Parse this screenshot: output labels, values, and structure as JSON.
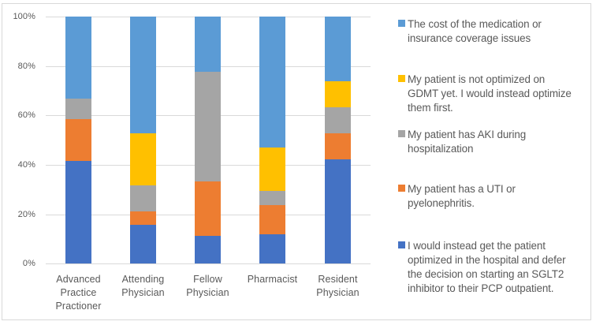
{
  "colors": {
    "series_dark_blue": "#4472C4",
    "series_orange": "#ED7D31",
    "series_gray": "#A5A5A5",
    "series_yellow": "#FFC000",
    "series_light_blue": "#5B9BD5",
    "gridline": "#D9D9D9",
    "axis_line": "#D9D9D9",
    "chart_border": "#D9D9D9",
    "text": "#595959",
    "background": "#FFFFFF"
  },
  "chart_data": {
    "type": "bar",
    "subtype": "stacked-100-percent-column",
    "title": "",
    "xlabel": "",
    "ylabel": "",
    "ylim": [
      0,
      100
    ],
    "yticks": [
      "0%",
      "20%",
      "40%",
      "60%",
      "80%",
      "100%"
    ],
    "grid": true,
    "legend_position": "right",
    "categories": [
      "Advanced Practice Practioner",
      "Attending Physician",
      "Fellow Physician",
      "Pharmacist",
      "Resident Physician"
    ],
    "category_label_lines": [
      [
        "Advanced",
        "Practice",
        "Practioner"
      ],
      [
        "Attending",
        "Physician"
      ],
      [
        "Fellow",
        "Physician"
      ],
      [
        "Pharmacist"
      ],
      [
        "Resident",
        "Physician"
      ]
    ],
    "series": [
      {
        "name": "I would instead get the patient optimized in the hospital and defer the decision on starting an SGLT2 inhibitor to their PCP outpatient.",
        "color": "#4472C4",
        "values": [
          41.67,
          15.79,
          11.11,
          11.76,
          42.11
        ]
      },
      {
        "name": "My patient has a UTI or pyelonephritis.",
        "color": "#ED7D31",
        "values": [
          16.67,
          5.26,
          22.22,
          11.76,
          10.53
        ]
      },
      {
        "name": "My patient has AKI during hospitalization",
        "color": "#A5A5A5",
        "values": [
          8.33,
          10.53,
          44.44,
          5.88,
          10.53
        ]
      },
      {
        "name": "My patient is not optimized on GDMT yet. I would instead optimize them first.",
        "color": "#FFC000",
        "values": [
          0,
          21.05,
          0,
          17.65,
          10.53
        ]
      },
      {
        "name": "The cost of the medication or insurance coverage issues",
        "color": "#5B9BD5",
        "values": [
          33.33,
          47.37,
          22.22,
          52.94,
          26.32
        ]
      }
    ]
  },
  "legend": {
    "entries": [
      {
        "label": "The cost of the medication or insurance coverage issues",
        "color": "#5B9BD5",
        "lines": [
          "The cost of the medication or",
          "insurance coverage issues"
        ]
      },
      {
        "label": "My patient is not optimized on GDMT yet. I would instead optimize them first.",
        "color": "#FFC000",
        "lines": [
          "My patient is not optimized on",
          "GDMT yet. I would instead optimize",
          "them first."
        ]
      },
      {
        "label": "My patient has AKI during hospitalization",
        "color": "#A5A5A5",
        "lines": [
          "My patient has AKI during",
          "hospitalization"
        ]
      },
      {
        "label": "My patient has a UTI or pyelonephritis.",
        "color": "#ED7D31",
        "lines": [
          "My patient has a UTI or",
          "pyelonephritis."
        ]
      },
      {
        "label": "I would instead get the patient optimized in the hospital and defer the decision on starting an SGLT2 inhibitor to their PCP outpatient.",
        "color": "#4472C4",
        "lines": [
          "I would instead get the patient",
          "optimized in the hospital and defer",
          "the decision on starting an SGLT2",
          "inhibitor to their PCP outpatient."
        ]
      }
    ]
  }
}
